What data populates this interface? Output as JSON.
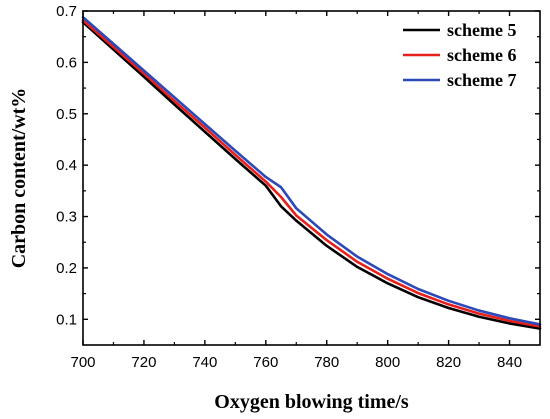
{
  "chart_data": {
    "type": "line",
    "title": "",
    "xlabel": "Oxygen blowing time/s",
    "ylabel": "Carbon content/wt%",
    "xlim": [
      700,
      850
    ],
    "ylim": [
      0.05,
      0.7
    ],
    "x_ticks": [
      700,
      720,
      740,
      760,
      780,
      800,
      820,
      840
    ],
    "y_ticks": [
      0.1,
      0.2,
      0.3,
      0.4,
      0.5,
      0.6,
      0.7
    ],
    "x_tick_labels": [
      "700",
      "720",
      "740",
      "760",
      "780",
      "800",
      "820",
      "840"
    ],
    "y_tick_labels": [
      "0.1",
      "0.2",
      "0.3",
      "0.4",
      "0.5",
      "0.6",
      "0.7"
    ],
    "grid": false,
    "legend_position": "top-right",
    "series": [
      {
        "name": "scheme 5",
        "color": "#000000",
        "x": [
          700,
          710,
          720,
          730,
          740,
          750,
          760,
          765,
          770,
          780,
          790,
          800,
          810,
          820,
          830,
          840,
          850
        ],
        "y": [
          0.678,
          0.625,
          0.572,
          0.518,
          0.465,
          0.412,
          0.36,
          0.32,
          0.292,
          0.243,
          0.202,
          0.17,
          0.143,
          0.122,
          0.105,
          0.092,
          0.082
        ]
      },
      {
        "name": "scheme 6",
        "color": "#e8201c",
        "x": [
          700,
          710,
          720,
          730,
          740,
          750,
          760,
          765,
          770,
          780,
          790,
          800,
          810,
          820,
          830,
          840,
          850
        ],
        "y": [
          0.682,
          0.63,
          0.578,
          0.525,
          0.473,
          0.42,
          0.368,
          0.338,
          0.302,
          0.254,
          0.212,
          0.179,
          0.151,
          0.129,
          0.111,
          0.097,
          0.086
        ]
      },
      {
        "name": "scheme 7",
        "color": "#2b49b8",
        "x": [
          700,
          710,
          720,
          730,
          740,
          750,
          760,
          765,
          770,
          780,
          790,
          800,
          810,
          820,
          830,
          840,
          850
        ],
        "y": [
          0.688,
          0.636,
          0.584,
          0.532,
          0.48,
          0.428,
          0.377,
          0.357,
          0.316,
          0.265,
          0.222,
          0.188,
          0.159,
          0.136,
          0.117,
          0.102,
          0.09
        ]
      }
    ]
  }
}
